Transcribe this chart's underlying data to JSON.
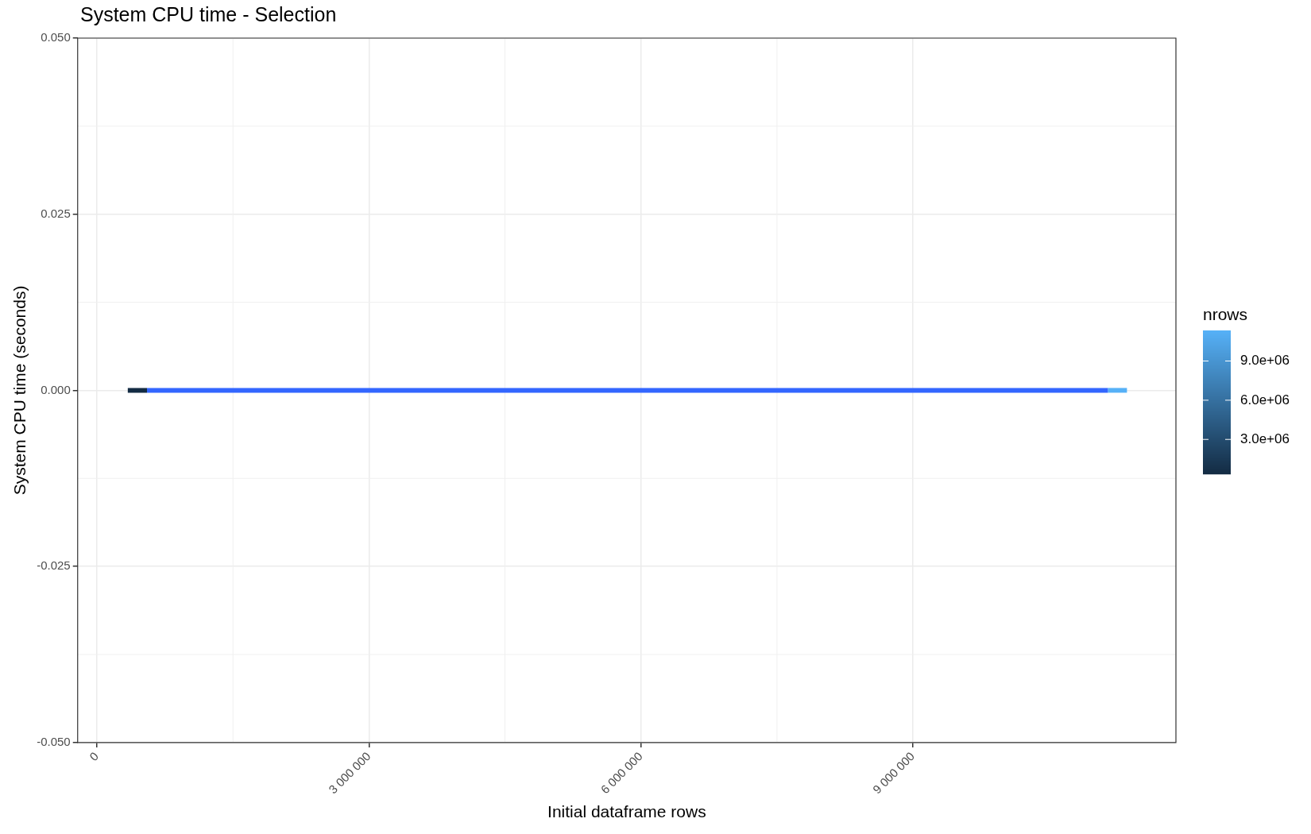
{
  "chart_data": {
    "type": "line",
    "title": "System CPU time - Selection",
    "xlabel": "Initial dataframe rows",
    "ylabel": "System CPU time (seconds)",
    "clabel": "nrows",
    "xlim": [
      -213000,
      11900000
    ],
    "xticks": [
      {
        "value": 0,
        "label": "0"
      },
      {
        "value": 3000000,
        "label": "3 000 000"
      },
      {
        "value": 6000000,
        "label": "6 000 000"
      },
      {
        "value": 9000000,
        "label": "9 000 000"
      }
    ],
    "ylim": [
      -0.05,
      0.05
    ],
    "yticks": [
      {
        "value": -0.05,
        "label": "-0.050"
      },
      {
        "value": -0.025,
        "label": "-0.025"
      },
      {
        "value": 0,
        "label": "0.000"
      },
      {
        "value": 0.025,
        "label": "0.025"
      },
      {
        "value": 0.05,
        "label": "0.050"
      }
    ],
    "clim": [
      340000,
      11340000
    ],
    "cticks": [
      {
        "value": 3000000,
        "label": "3.0e+06"
      },
      {
        "value": 6000000,
        "label": "6.0e+06"
      },
      {
        "value": 9000000,
        "label": "9.0e+06"
      }
    ],
    "grid": true,
    "series": [
      {
        "x": [
          340000,
          552000
        ],
        "values": [
          0,
          0
        ],
        "color": "#132b43"
      },
      {
        "x": [
          552000,
          11150000
        ],
        "values": [
          0,
          0
        ],
        "color": "#3366ff"
      },
      {
        "x": [
          11150000,
          11360000
        ],
        "values": [
          0,
          0
        ],
        "color": "#56b1f7"
      }
    ]
  }
}
